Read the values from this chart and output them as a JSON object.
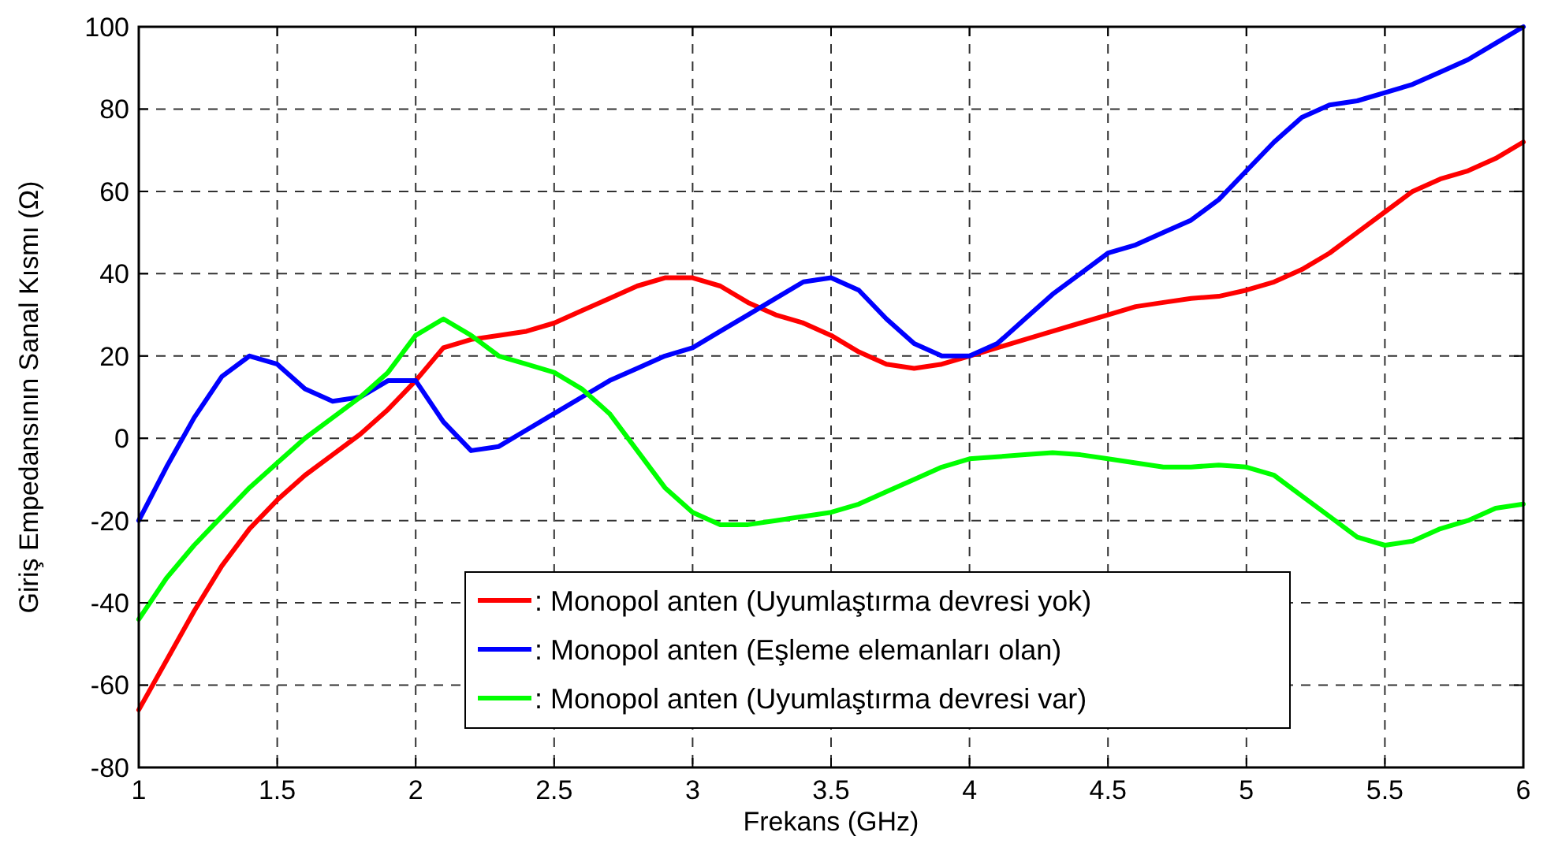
{
  "chart_data": {
    "type": "line",
    "xlabel": "Frekans (GHz)",
    "ylabel": "Giriş Empedansının Sanal Kısmı (Ω)",
    "x": [
      1.0,
      1.1,
      1.2,
      1.3,
      1.4,
      1.5,
      1.6,
      1.7,
      1.8,
      1.9,
      2.0,
      2.1,
      2.2,
      2.3,
      2.4,
      2.5,
      2.6,
      2.7,
      2.8,
      2.9,
      3.0,
      3.1,
      3.2,
      3.3,
      3.4,
      3.5,
      3.6,
      3.7,
      3.8,
      3.9,
      4.0,
      4.1,
      4.2,
      4.3,
      4.4,
      4.5,
      4.6,
      4.7,
      4.8,
      4.9,
      5.0,
      5.1,
      5.2,
      5.3,
      5.4,
      5.5,
      5.6,
      5.7,
      5.8,
      5.9,
      6.0
    ],
    "series": [
      {
        "name": ": Monopol anten (Uyumlaştırma devresi yok)",
        "color": "#ff0000",
        "values": [
          -66,
          -54,
          -42,
          -31,
          -22,
          -15,
          -9,
          -4,
          1,
          7,
          14,
          22,
          24,
          25,
          26,
          28,
          31,
          34,
          37,
          39,
          39,
          37,
          33,
          30,
          28,
          25,
          21,
          18,
          17,
          18,
          20,
          22,
          24,
          26,
          28,
          30,
          32,
          33,
          34,
          34.5,
          36,
          38,
          41,
          45,
          50,
          55,
          60,
          63,
          65,
          68,
          72
        ]
      },
      {
        "name": ": Monopol anten (Eşleme elemanları olan)",
        "color": "#0000ff",
        "values": [
          -20,
          -7,
          5,
          15,
          20,
          18,
          12,
          9,
          10,
          14,
          14,
          4,
          -3,
          -2,
          2,
          6,
          10,
          14,
          17,
          20,
          22,
          26,
          30,
          34,
          38,
          39,
          36,
          29,
          23,
          20,
          20,
          23,
          29,
          35,
          40,
          45,
          47,
          50,
          53,
          58,
          65,
          72,
          78,
          81,
          82,
          84,
          86,
          89,
          92,
          96,
          100
        ]
      },
      {
        "name": ": Monopol anten (Uyumlaştırma devresi var)",
        "color": "#00ff00",
        "values": [
          -44,
          -34,
          -26,
          -19,
          -12,
          -6,
          0,
          5,
          10,
          16,
          25,
          29,
          25,
          20,
          18,
          16,
          12,
          6,
          -3,
          -12,
          -18,
          -21,
          -21,
          -20,
          -19,
          -18,
          -16,
          -13,
          -10,
          -7,
          -5,
          -4.5,
          -4,
          -3.5,
          -4,
          -5,
          -6,
          -7,
          -7,
          -6.5,
          -7,
          -9,
          -14,
          -19,
          -24,
          -26,
          -25,
          -22,
          -20,
          -17,
          -16
        ]
      }
    ],
    "xlim": [
      1,
      6
    ],
    "xticks": [
      1,
      1.5,
      2,
      2.5,
      3,
      3.5,
      4,
      4.5,
      5,
      5.5,
      6
    ],
    "ylim": [
      -80,
      100
    ],
    "yticks": [
      -80,
      -60,
      -40,
      -20,
      0,
      20,
      40,
      60,
      80,
      100
    ],
    "grid": true,
    "legend": "bottom",
    "line_style": "solid",
    "marker": "none"
  }
}
